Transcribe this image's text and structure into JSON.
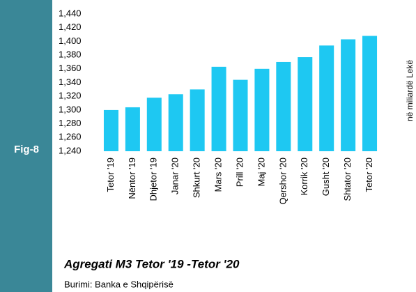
{
  "chart_data": {
    "type": "bar",
    "figure_label": "Fig-8",
    "title": "Agregati M3 Tetor '19 -Tetor '20",
    "source": "Burimi: Banka e Shqipërisë",
    "y_label": "në miliardë Lekë",
    "categories": [
      "Tetor '19",
      "Nëntor '19",
      "Dhjetor '19",
      "Janar '20",
      "Shkurt '20",
      "Mars '20",
      "Prill '20",
      "Maj '20",
      "Qershor '20",
      "Korrik '20",
      "Gusht '20",
      "Shtator '20",
      "Tetor '20"
    ],
    "values": [
      1300,
      1304,
      1318,
      1323,
      1330,
      1363,
      1344,
      1360,
      1370,
      1377,
      1394,
      1403,
      1408
    ],
    "color": "#1ec8f2",
    "ylim": [
      1240,
      1440
    ],
    "yticks": [
      {
        "value": 1240,
        "label": "1,240"
      },
      {
        "value": 1260,
        "label": "1,260"
      },
      {
        "value": 1280,
        "label": "1,280"
      },
      {
        "value": 1300,
        "label": "1,300"
      },
      {
        "value": 1320,
        "label": "1,320"
      },
      {
        "value": 1340,
        "label": "1,340"
      },
      {
        "value": 1360,
        "label": "1,360"
      },
      {
        "value": 1380,
        "label": "1,380"
      },
      {
        "value": 1400,
        "label": "1,400"
      },
      {
        "value": 1420,
        "label": "1,420"
      },
      {
        "value": 1440,
        "label": "1,440"
      }
    ],
    "grid": false
  }
}
